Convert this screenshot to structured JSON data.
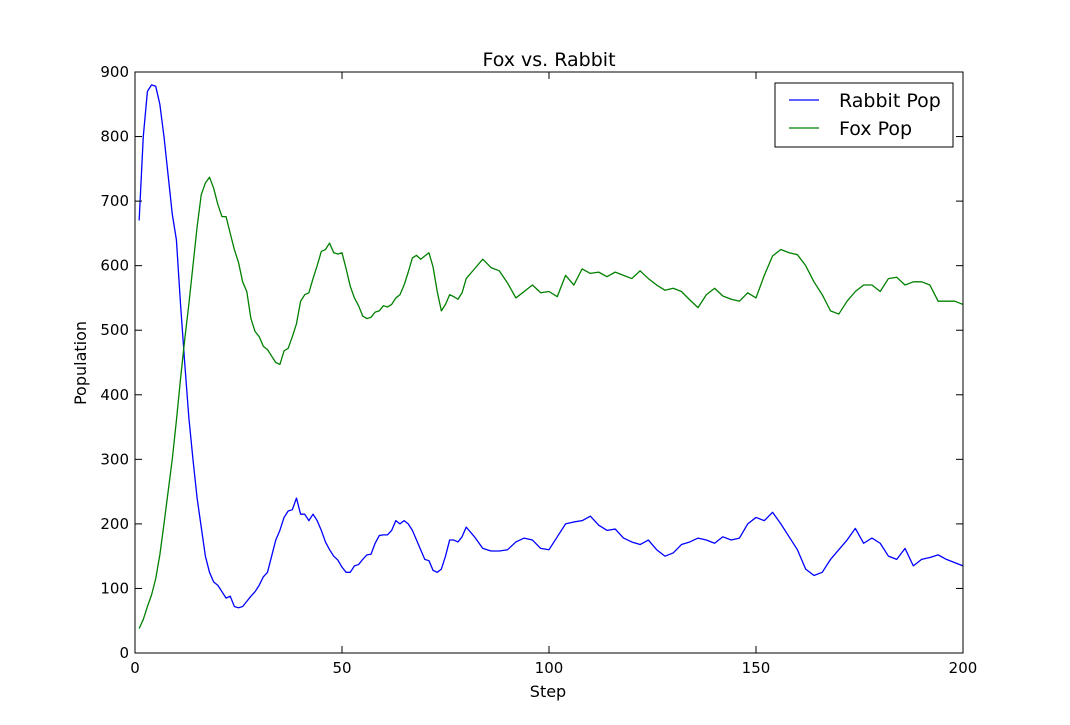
{
  "chart_data": {
    "type": "line",
    "title": "Fox vs. Rabbit",
    "xlabel": "Step",
    "ylabel": "Population",
    "xlim": [
      0,
      200
    ],
    "ylim": [
      0,
      900
    ],
    "xticks": [
      0,
      50,
      100,
      150,
      200
    ],
    "yticks": [
      0,
      100,
      200,
      300,
      400,
      500,
      600,
      700,
      800,
      900
    ],
    "grid": false,
    "legend_position": "top-right",
    "series": [
      {
        "name": "Rabbit Pop",
        "color": "#0000ff",
        "x": [
          1,
          2,
          3,
          4,
          5,
          6,
          7,
          8,
          9,
          10,
          11,
          12,
          13,
          14,
          15,
          16,
          17,
          18,
          19,
          20,
          21,
          22,
          23,
          24,
          25,
          26,
          27,
          28,
          29,
          30,
          31,
          32,
          33,
          34,
          35,
          36,
          37,
          38,
          39,
          40,
          41,
          42,
          43,
          44,
          45,
          46,
          47,
          48,
          49,
          50,
          51,
          52,
          53,
          54,
          55,
          56,
          57,
          58,
          59,
          60,
          61,
          62,
          63,
          64,
          65,
          66,
          67,
          68,
          69,
          70,
          71,
          72,
          73,
          74,
          75,
          76,
          77,
          78,
          79,
          80,
          82,
          84,
          86,
          88,
          90,
          92,
          94,
          96,
          98,
          100,
          102,
          104,
          106,
          108,
          110,
          112,
          114,
          116,
          118,
          120,
          122,
          124,
          126,
          128,
          130,
          132,
          134,
          136,
          138,
          140,
          142,
          144,
          146,
          148,
          150,
          152,
          154,
          156,
          158,
          160,
          162,
          164,
          166,
          168,
          170,
          172,
          174,
          176,
          178,
          180,
          182,
          184,
          186,
          188,
          190,
          192,
          194,
          196,
          198,
          200
        ],
        "values": [
          670,
          800,
          870,
          880,
          878,
          850,
          800,
          740,
          680,
          640,
          540,
          450,
          365,
          300,
          240,
          195,
          150,
          125,
          110,
          105,
          95,
          85,
          88,
          72,
          70,
          72,
          80,
          88,
          95,
          105,
          118,
          125,
          150,
          175,
          190,
          210,
          220,
          222,
          240,
          215,
          215,
          205,
          215,
          205,
          190,
          172,
          160,
          150,
          144,
          133,
          125,
          125,
          135,
          137,
          145,
          152,
          153,
          170,
          182,
          183,
          183,
          190,
          205,
          200,
          205,
          200,
          190,
          175,
          160,
          145,
          143,
          128,
          125,
          130,
          150,
          175,
          175,
          172,
          180,
          195,
          180,
          162,
          158,
          158,
          160,
          172,
          178,
          175,
          162,
          160,
          180,
          200,
          203,
          205,
          212,
          198,
          190,
          192,
          178,
          172,
          168,
          175,
          160,
          150,
          155,
          168,
          172,
          178,
          175,
          170,
          180,
          175,
          178,
          200,
          210,
          205,
          218,
          200,
          180,
          160,
          130,
          120,
          125,
          145,
          160,
          175,
          193,
          170,
          178,
          170,
          150,
          145,
          162,
          135,
          145,
          148,
          152,
          145,
          140,
          135
        ]
      },
      {
        "name": "Fox Pop",
        "color": "#008000",
        "x": [
          1,
          2,
          3,
          4,
          5,
          6,
          7,
          8,
          9,
          10,
          11,
          12,
          13,
          14,
          15,
          16,
          17,
          18,
          19,
          20,
          21,
          22,
          23,
          24,
          25,
          26,
          27,
          28,
          29,
          30,
          31,
          32,
          33,
          34,
          35,
          36,
          37,
          38,
          39,
          40,
          41,
          42,
          43,
          44,
          45,
          46,
          47,
          48,
          49,
          50,
          51,
          52,
          53,
          54,
          55,
          56,
          57,
          58,
          59,
          60,
          61,
          62,
          63,
          64,
          65,
          66,
          67,
          68,
          69,
          70,
          71,
          72,
          73,
          74,
          75,
          76,
          77,
          78,
          79,
          80,
          82,
          84,
          86,
          88,
          90,
          92,
          94,
          96,
          98,
          100,
          102,
          104,
          106,
          108,
          110,
          112,
          114,
          116,
          118,
          120,
          122,
          124,
          126,
          128,
          130,
          132,
          134,
          136,
          138,
          140,
          142,
          144,
          146,
          148,
          150,
          152,
          154,
          156,
          158,
          160,
          162,
          164,
          166,
          168,
          170,
          172,
          174,
          176,
          178,
          180,
          182,
          184,
          186,
          188,
          190,
          192,
          194,
          196,
          198,
          200
        ],
        "values": [
          38,
          52,
          72,
          90,
          115,
          152,
          200,
          250,
          300,
          360,
          425,
          485,
          540,
          600,
          660,
          710,
          728,
          737,
          720,
          695,
          676,
          676,
          650,
          625,
          605,
          575,
          560,
          518,
          498,
          490,
          475,
          470,
          460,
          450,
          447,
          468,
          472,
          490,
          510,
          545,
          555,
          558,
          580,
          600,
          622,
          625,
          635,
          620,
          618,
          620,
          595,
          568,
          550,
          538,
          522,
          518,
          520,
          528,
          530,
          538,
          536,
          540,
          550,
          555,
          570,
          590,
          612,
          616,
          610,
          615,
          620,
          598,
          560,
          530,
          540,
          555,
          552,
          548,
          558,
          580,
          595,
          610,
          597,
          592,
          573,
          550,
          560,
          570,
          558,
          560,
          552,
          585,
          570,
          595,
          588,
          590,
          583,
          590,
          585,
          580,
          592,
          580,
          570,
          562,
          565,
          560,
          547,
          535,
          555,
          565,
          553,
          548,
          545,
          558,
          550,
          585,
          615,
          625,
          620,
          617,
          600,
          575,
          555,
          530,
          525,
          545,
          560,
          570,
          570,
          560,
          580,
          582,
          570,
          575,
          575,
          570,
          545,
          545,
          545,
          540
        ]
      }
    ]
  }
}
